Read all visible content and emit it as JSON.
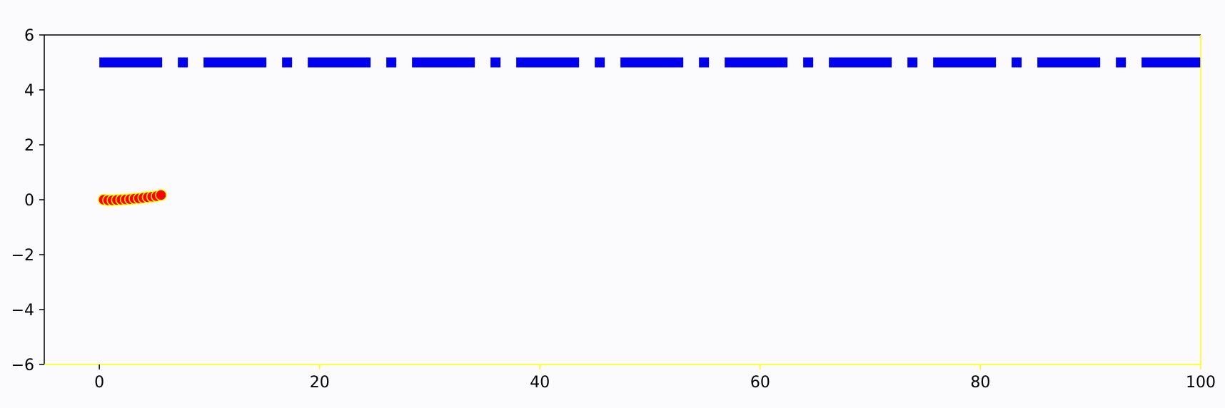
{
  "chart_data": {
    "type": "line",
    "title": "",
    "xlabel": "",
    "ylabel": "",
    "xlim": [
      -5,
      100
    ],
    "ylim": [
      -6,
      6
    ],
    "x_ticks": [
      0,
      20,
      40,
      60,
      80,
      100
    ],
    "y_ticks": [
      -6,
      -4,
      -2,
      0,
      2,
      4,
      6
    ],
    "x_tick_labels": [
      "0",
      "20",
      "40",
      "60",
      "80",
      "100"
    ],
    "y_tick_labels": [
      "−6",
      "−4",
      "−2",
      "0",
      "2",
      "4",
      "6"
    ],
    "grid": false,
    "legend": "none",
    "series": [
      {
        "style": "dashdot",
        "color": "#0000ee",
        "x": [
          0,
          100
        ],
        "y": [
          5,
          5
        ]
      },
      {
        "style": "markers-line",
        "color": "#ff0000",
        "edge_color": "#ffff00",
        "x": [
          0.4,
          0.8,
          1.2,
          1.6,
          2.0,
          2.4,
          2.8,
          3.2,
          3.6,
          4.0,
          4.4,
          4.8,
          5.2,
          5.6
        ],
        "y": [
          0.0,
          -0.02,
          -0.02,
          -0.01,
          0.0,
          0.01,
          0.02,
          0.04,
          0.05,
          0.07,
          0.09,
          0.11,
          0.13,
          0.17
        ]
      }
    ],
    "colors": {
      "background": "#fbfbfd",
      "axes_left_top": "#000000",
      "axes_right_bottom": "#ffff00",
      "tick_label_default": "#000000",
      "tick_label_highlight": "#e8e800"
    }
  }
}
